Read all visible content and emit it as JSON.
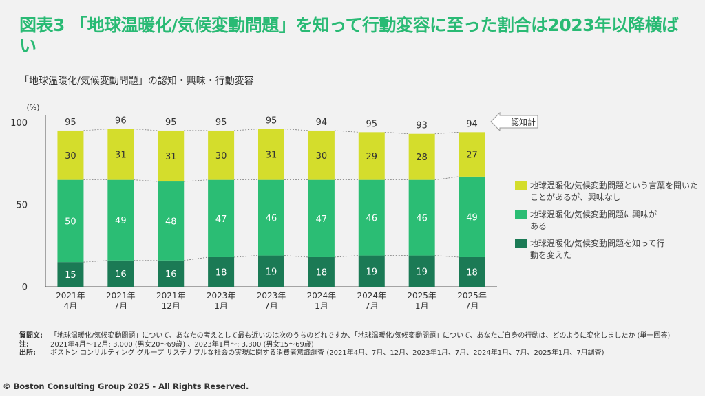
{
  "title": "図表3 「地球温暖化/気候変動問題」を知って行動変容に至った割合は2023年以降横ばい",
  "subtitle": "「地球温暖化/気候変動問題」の認知・興味・行動変容",
  "callout_label": "認知計",
  "chart_data": {
    "type": "bar",
    "stacked": true,
    "ylabel": "(%)",
    "ylim": [
      0,
      100
    ],
    "yticks": [
      0,
      50,
      100
    ],
    "grid": false,
    "legend_placement": "right",
    "categories": [
      "2021年\n4月",
      "2021年\n7月",
      "2021年\n12月",
      "2023年\n1月",
      "2023年\n7月",
      "2024年\n1月",
      "2024年\n7月",
      "2025年\n1月",
      "2025年\n7月"
    ],
    "series": [
      {
        "name": "地球温暖化/気候変動問題を知って行動を変えた",
        "color": "#1b7a55",
        "values": [
          15,
          16,
          16,
          18,
          19,
          18,
          19,
          19,
          18
        ]
      },
      {
        "name": "地球温暖化/気候変動問題に興味がある",
        "color": "#2bbd74",
        "values": [
          50,
          49,
          48,
          47,
          46,
          47,
          46,
          46,
          49
        ]
      },
      {
        "name": "地球温暖化/気候変動問題という言葉を聞いたことがあるが、興味なし",
        "color": "#d4dd2c",
        "values": [
          30,
          31,
          31,
          30,
          31,
          30,
          29,
          28,
          27
        ]
      }
    ],
    "totals": [
      95,
      96,
      95,
      95,
      95,
      94,
      95,
      93,
      94
    ]
  },
  "legend": [
    {
      "label": "地球温暖化/気候変動問題という言葉を聞いたことがあるが、興味なし",
      "color": "#d4dd2c"
    },
    {
      "label": "地球温暖化/気候変動問題に興味がある",
      "color": "#2bbd74"
    },
    {
      "label": "地球温暖化/気候変動問題を知って行動を変えた",
      "color": "#1b7a55"
    }
  ],
  "notes": [
    {
      "key": "質問文:",
      "text": "「地球温暖化/気候変動問題」について、あなたの考えとして最も近いのは次のうちのどれですか、「地球温暖化/気候変動問題」について、あなたご自身の行動は、どのように変化しましたか (単一回答)"
    },
    {
      "key": "注:",
      "text": "2021年4月～12月: 3,000 (男女20～69歳) 、2023年1月～: 3,300 (男女15～69歳)"
    },
    {
      "key": "出所:",
      "text": "ボストン コンサルティング グループ サステナブルな社会の実現に関する消費者意識調査 (2021年4月、7月、12月、2023年1月、7月、2024年1月、7月、2025年1月、7月調査)"
    }
  ],
  "copyright": "© Boston Consulting Group 2025 - All Rights Reserved."
}
